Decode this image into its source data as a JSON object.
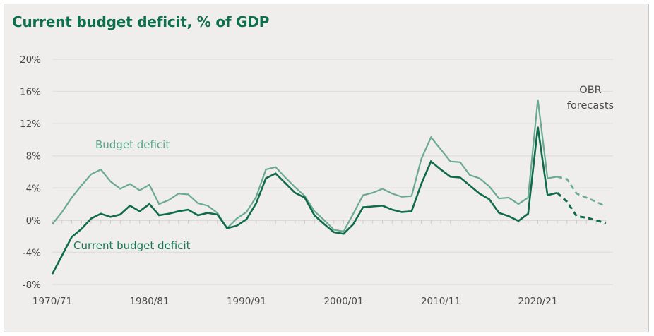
{
  "chart_data": {
    "type": "line",
    "title": "Current budget deficit, % of GDP",
    "xlabel": "",
    "ylabel": "",
    "ylim": [
      -8,
      20
    ],
    "yticks": [
      -8,
      -4,
      0,
      4,
      8,
      12,
      16,
      20
    ],
    "ytick_labels": [
      "-8%",
      "-4%",
      "0%",
      "4%",
      "8%",
      "12%",
      "16%",
      "20%"
    ],
    "grid": true,
    "x": [
      "1970/71",
      "1971/72",
      "1972/73",
      "1973/74",
      "1974/75",
      "1975/76",
      "1976/77",
      "1977/78",
      "1978/79",
      "1979/80",
      "1980/81",
      "1981/82",
      "1982/83",
      "1983/84",
      "1984/85",
      "1985/86",
      "1986/87",
      "1987/88",
      "1988/89",
      "1989/90",
      "1990/91",
      "1991/92",
      "1992/93",
      "1993/94",
      "1994/95",
      "1995/96",
      "1996/97",
      "1997/98",
      "1998/99",
      "1999/00",
      "2000/01",
      "2001/02",
      "2002/03",
      "2003/04",
      "2004/05",
      "2005/06",
      "2006/07",
      "2007/08",
      "2008/09",
      "2009/10",
      "2010/11",
      "2011/12",
      "2012/13",
      "2013/14",
      "2014/15",
      "2015/16",
      "2016/17",
      "2017/18",
      "2018/19",
      "2019/20",
      "2020/21",
      "2021/22",
      "2022/23",
      "2023/24",
      "2024/25",
      "2025/26",
      "2026/27",
      "2027/28"
    ],
    "xtick_labels": [
      "1970/71",
      "1980/81",
      "1990/91",
      "2000/01",
      "2010/11",
      "2020/21"
    ],
    "forecast_start": "2022/23",
    "series": [
      {
        "name": "Budget deficit",
        "color": "#6aa993",
        "values": [
          -0.5,
          1.0,
          2.8,
          4.3,
          5.7,
          6.3,
          4.8,
          3.9,
          4.5,
          3.7,
          4.4,
          2.0,
          2.5,
          3.3,
          3.2,
          2.1,
          1.8,
          0.9,
          -1.0,
          0.2,
          1.0,
          2.9,
          6.3,
          6.6,
          5.3,
          4.1,
          3.0,
          1.1,
          0.0,
          -1.2,
          -1.4,
          0.8,
          3.1,
          3.4,
          3.9,
          3.3,
          2.9,
          3.0,
          7.6,
          10.3,
          8.8,
          7.3,
          7.2,
          5.6,
          5.2,
          4.2,
          2.7,
          2.8,
          2.0,
          2.8,
          15.0,
          5.2,
          5.4,
          5.1,
          3.3,
          2.8,
          2.3,
          1.7
        ]
      },
      {
        "name": "Current budget deficit",
        "color": "#0f6b4a",
        "values": [
          -6.7,
          -4.4,
          -2.1,
          -1.1,
          0.2,
          0.8,
          0.4,
          0.7,
          1.8,
          1.1,
          2.0,
          0.6,
          0.8,
          1.1,
          1.3,
          0.6,
          0.9,
          0.7,
          -1.0,
          -0.7,
          0.1,
          2.1,
          5.2,
          5.8,
          4.6,
          3.4,
          2.8,
          0.6,
          -0.5,
          -1.5,
          -1.7,
          -0.5,
          1.6,
          1.7,
          1.8,
          1.3,
          1.0,
          1.1,
          4.5,
          7.3,
          6.3,
          5.4,
          5.3,
          4.3,
          3.3,
          2.6,
          0.9,
          0.5,
          -0.1,
          0.8,
          11.6,
          3.1,
          3.4,
          2.3,
          0.5,
          0.3,
          0.0,
          -0.4
        ]
      }
    ],
    "annotations": [
      {
        "text": "Budget deficit",
        "series": "Budget deficit"
      },
      {
        "text": "Current budget deficit",
        "series": "Current budget deficit"
      },
      {
        "text_lines": [
          "OBR",
          "forecasts"
        ]
      }
    ],
    "legend": "none (inline labels)"
  },
  "colors": {
    "title": "#0e6e4e",
    "budget_label": "#5aa58a",
    "current_label": "#1a7656",
    "gridline": "#e2e0dd",
    "axis": "#cfcdca"
  }
}
